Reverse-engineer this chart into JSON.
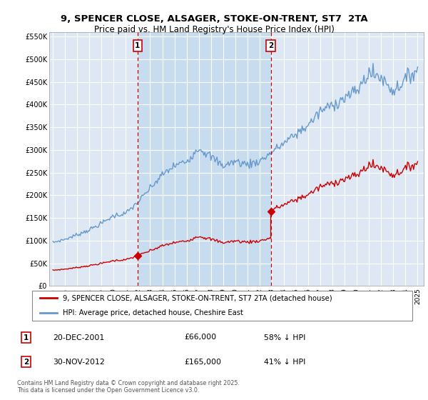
{
  "title_line1": "9, SPENCER CLOSE, ALSAGER, STOKE-ON-TRENT, ST7  2TA",
  "title_line2": "Price paid vs. HM Land Registry's House Price Index (HPI)",
  "background_color": "#ffffff",
  "plot_bg_color": "#dde8f4",
  "shaded_bg_color": "#c8dcf0",
  "grid_color": "#ffffff",
  "hpi_color": "#6699cc",
  "price_color": "#cc0000",
  "vline_color": "#cc0000",
  "sale1": {
    "date": "20-DEC-2001",
    "price": 66000,
    "label": "1",
    "pct": "58% ↓ HPI",
    "x": 2001.97
  },
  "sale2": {
    "date": "30-NOV-2012",
    "price": 165000,
    "label": "2",
    "pct": "41% ↓ HPI",
    "x": 2012.92
  },
  "legend_entries": [
    "9, SPENCER CLOSE, ALSAGER, STOKE-ON-TRENT, ST7 2TA (detached house)",
    "HPI: Average price, detached house, Cheshire East"
  ],
  "footnote": "Contains HM Land Registry data © Crown copyright and database right 2025.\nThis data is licensed under the Open Government Licence v3.0.",
  "ylim": [
    0,
    560000
  ],
  "yticks": [
    0,
    50000,
    100000,
    150000,
    200000,
    250000,
    300000,
    350000,
    400000,
    450000,
    500000,
    550000
  ],
  "ytick_labels": [
    "£0",
    "£50K",
    "£100K",
    "£150K",
    "£200K",
    "£250K",
    "£300K",
    "£350K",
    "£400K",
    "£450K",
    "£500K",
    "£550K"
  ]
}
